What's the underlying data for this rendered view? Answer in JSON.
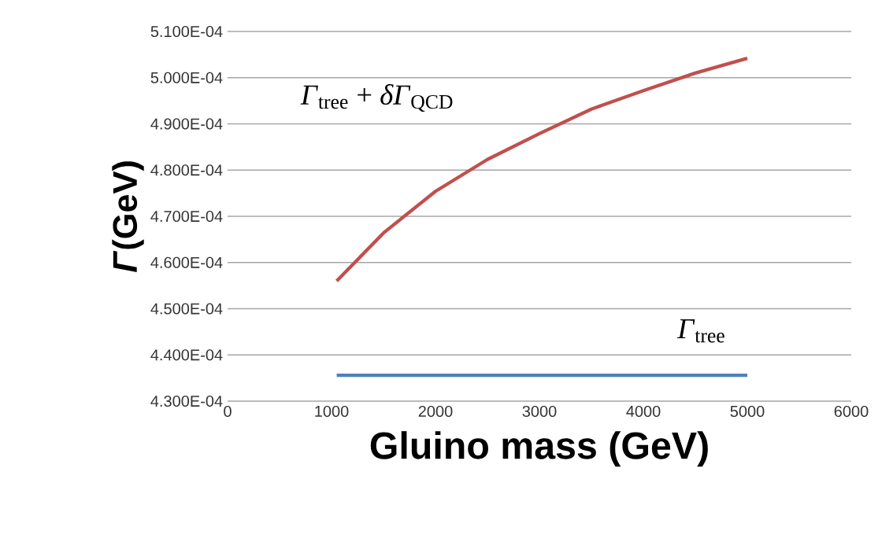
{
  "chart_data": {
    "type": "line",
    "xlabel": "Gluino mass (GeV)",
    "ylabel": "*Γ*(GeV)",
    "series": [
      {
        "name": "*Γ*$_{tree}$ + *δΓ*$_{QCD}$",
        "color": "#c0504d",
        "x": [
          1050,
          1500,
          2000,
          2500,
          3000,
          3500,
          4000,
          4500,
          5000
        ],
        "values": [
          0.000456,
          0.0004664,
          0.0004754,
          0.0004823,
          0.0004879,
          0.0004932,
          0.0004972,
          0.000501,
          0.0005042
        ]
      },
      {
        "name": "*Γ*$_{tree}$",
        "color": "#4f81bd",
        "x": [
          1050,
          5000
        ],
        "values": [
          0.0004356,
          0.0004356
        ]
      }
    ],
    "xlim": [
      0,
      6000
    ],
    "xticks": [
      0,
      1000,
      2000,
      3000,
      4000,
      5000,
      6000
    ],
    "ylim": [
      0.00043,
      0.00051
    ],
    "yticks": [
      {
        "value": 0.00043,
        "label": "4.300E-04"
      },
      {
        "value": 0.00044,
        "label": "4.400E-04"
      },
      {
        "value": 0.00045,
        "label": "4.500E-04"
      },
      {
        "value": 0.00046,
        "label": "4.600E-04"
      },
      {
        "value": 0.00047,
        "label": "4.700E-04"
      },
      {
        "value": 0.00048,
        "label": "4.800E-04"
      },
      {
        "value": 0.00049,
        "label": "4.900E-04"
      },
      {
        "value": 0.0005,
        "label": "5.000E-04"
      },
      {
        "value": 0.00051,
        "label": "5.100E-04"
      }
    ],
    "grid": "y",
    "legend": false,
    "marker": "none",
    "line_style": "solid"
  }
}
